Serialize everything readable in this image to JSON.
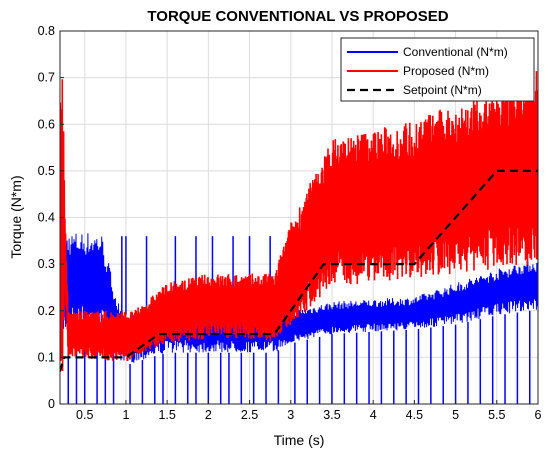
{
  "chart_data": {
    "type": "line",
    "title": "TORQUE CONVENTIONAL VS PROPOSED",
    "xlabel": "Time (s)",
    "ylabel": "Torque (N*m)",
    "xlim": [
      0.2,
      6
    ],
    "ylim": [
      0,
      0.8
    ],
    "xticks": [
      0.5,
      1,
      1.5,
      2,
      2.5,
      3,
      3.5,
      4,
      4.5,
      5,
      5.5,
      6
    ],
    "xtick_labels": [
      "0.5",
      "1",
      "1.5",
      "2",
      "2.5",
      "3",
      "3.5",
      "4",
      "4.5",
      "5",
      "5.5",
      "6"
    ],
    "yticks": [
      0,
      0.1,
      0.2,
      0.3,
      0.4,
      0.5,
      0.6,
      0.7,
      0.8
    ],
    "ytick_labels": [
      "0",
      "0.1",
      "0.2",
      "0.3",
      "0.4",
      "0.5",
      "0.6",
      "0.7",
      "0.8"
    ],
    "grid": true,
    "legend_position": "top-right",
    "series": [
      {
        "name": "Conventional (N*m)",
        "color": "#0000ff",
        "style": "solid",
        "band": {
          "x": [
            0.22,
            0.3,
            0.7,
            0.95,
            1.3,
            1.5,
            2.8,
            3.0,
            3.5,
            4.5,
            5.0,
            5.5,
            5.9,
            6.0
          ],
          "low": [
            0.14,
            0.16,
            0.16,
            0.08,
            0.1,
            0.11,
            0.11,
            0.13,
            0.15,
            0.16,
            0.17,
            0.19,
            0.2,
            0.2
          ],
          "high": [
            0.37,
            0.37,
            0.37,
            0.19,
            0.2,
            0.22,
            0.21,
            0.2,
            0.22,
            0.23,
            0.26,
            0.29,
            0.31,
            0.31
          ]
        },
        "spikes_to_zero_x": [
          0.3,
          0.4,
          0.5,
          0.65,
          0.75,
          0.85,
          1.05,
          1.2,
          1.35,
          1.45,
          1.6,
          1.75,
          1.85,
          2.0,
          2.15,
          2.25,
          2.4,
          2.55,
          2.7,
          2.85,
          3.05,
          3.2,
          3.35,
          3.5,
          3.65,
          3.8,
          3.95,
          4.1,
          4.25,
          4.4,
          4.55,
          4.7,
          4.85,
          5.0,
          5.15,
          5.3,
          5.45,
          5.6,
          5.75,
          5.9
        ],
        "spikes_up_x": [
          0.95,
          1.0,
          1.25,
          1.6,
          1.85,
          2.05,
          2.3,
          2.5,
          2.75
        ],
        "spike_up_value": 0.36
      },
      {
        "name": "Proposed (N*m)",
        "color": "#ff0000",
        "style": "solid",
        "band": {
          "x": [
            0.2,
            0.23,
            0.26,
            0.3,
            1.0,
            1.1,
            1.5,
            2.0,
            2.5,
            2.8,
            3.0,
            3.5,
            4.0,
            4.5,
            4.6,
            5.5,
            6.0
          ],
          "low": [
            0.08,
            0.05,
            0.24,
            0.1,
            0.09,
            0.1,
            0.13,
            0.14,
            0.14,
            0.13,
            0.17,
            0.25,
            0.26,
            0.27,
            0.27,
            0.29,
            0.3
          ],
          "high": [
            0.7,
            0.76,
            0.42,
            0.2,
            0.2,
            0.2,
            0.26,
            0.28,
            0.28,
            0.28,
            0.39,
            0.57,
            0.59,
            0.61,
            0.62,
            0.67,
            0.72
          ]
        }
      },
      {
        "name": "Setpoint (N*m)",
        "color": "#000000",
        "style": "dashed",
        "x": [
          0.2,
          0.25,
          1.0,
          1.4,
          2.8,
          3.4,
          4.5,
          5.5,
          6.0
        ],
        "y": [
          0.07,
          0.1,
          0.1,
          0.15,
          0.15,
          0.3,
          0.3,
          0.5,
          0.5
        ]
      }
    ]
  }
}
